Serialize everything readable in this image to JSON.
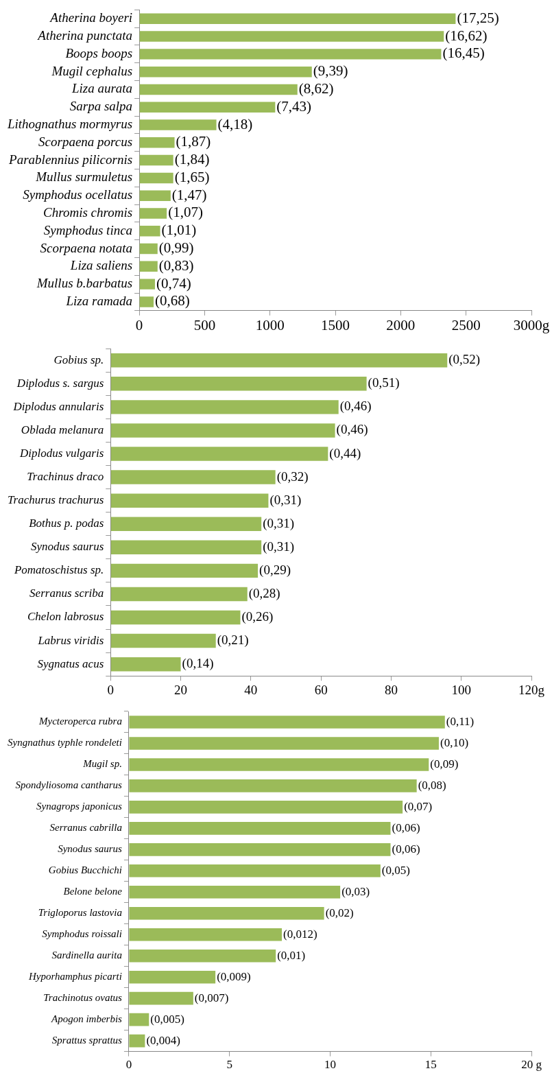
{
  "chart_data": [
    {
      "type": "bar",
      "orientation": "horizontal",
      "color": "#9bbb59",
      "categories": [
        "Atherina boyeri",
        "Atherina punctata",
        "Boops boops",
        "Mugil cephalus",
        "Liza aurata",
        "Sarpa salpa",
        "Lithognathus mormyrus",
        "Scorpaena porcus",
        "Parablennius pilicornis",
        "Mullus surmuletus",
        "Symphodus ocellatus",
        "Chromis chromis",
        "Symphodus tinca",
        "Scorpaena notata",
        "Liza saliens",
        "Mullus b.barbatus",
        "Liza ramada"
      ],
      "values": [
        2420,
        2330,
        2310,
        1320,
        1210,
        1040,
        590,
        270,
        260,
        260,
        240,
        210,
        160,
        140,
        140,
        120,
        110
      ],
      "annotations": [
        {
          "text": "(17,25)",
          "x": 2420
        },
        {
          "text": "(16,62)",
          "x": 2330
        },
        {
          "text": "(16,45)",
          "x": 2310
        },
        {
          "text": "(9,39)",
          "x": 1320
        },
        {
          "text": "(8,62)",
          "x": 1210
        },
        {
          "text": "(7,43)",
          "x": 1040
        },
        {
          "text": "(4,18)",
          "x": 590
        },
        {
          "text": "(1,87)",
          "x": 270
        },
        {
          "text": "(1,84)",
          "x": 260
        },
        {
          "text": "(1,65)",
          "x": 260
        },
        {
          "text": "(1,47)",
          "x": 240
        },
        {
          "text": "(1,07)",
          "x": 210
        },
        {
          "text": "(1,01)",
          "x": 160
        },
        {
          "text": "(0,99)",
          "x": 140
        },
        {
          "text": "(0,83)",
          "x": 140
        },
        {
          "text": "(0,74)",
          "x": 120
        },
        {
          "text": "(0,68)",
          "x": 110
        }
      ],
      "xlim": [
        0,
        3000
      ],
      "xticks": [
        0,
        500,
        1000,
        1500,
        2000,
        2500,
        {
          "value": 3000,
          "label": "3000g"
        }
      ]
    },
    {
      "type": "bar",
      "orientation": "horizontal",
      "color": "#9bbb59",
      "categories": [
        "Gobius sp.",
        "Diplodus s. sargus",
        "Diplodus annularis",
        "Oblada melanura",
        "Diplodus vulgaris",
        "Trachinus draco",
        "Trachurus trachurus",
        "Bothus p. podas",
        "Synodus saurus",
        "Pomatoschistus sp.",
        "Serranus scriba",
        "Chelon labrosus",
        "Labrus viridis",
        "Sygnatus acus"
      ],
      "values": [
        96,
        73,
        65,
        64,
        62,
        47,
        45,
        43,
        43,
        42,
        39,
        37,
        30,
        20
      ],
      "annotations": [
        {
          "text": "(0,52)",
          "x": 96
        },
        {
          "text": "(0,51)",
          "x": 73
        },
        {
          "text": "(0,46)",
          "x": 65
        },
        {
          "text": "(0,46)",
          "x": 64
        },
        {
          "text": "(0,44)",
          "x": 62
        },
        {
          "text": "(0,32)",
          "x": 47
        },
        {
          "text": "(0,31)",
          "x": 45
        },
        {
          "text": "(0,31)",
          "x": 43
        },
        {
          "text": "(0,31)",
          "x": 43
        },
        {
          "text": "(0,29)",
          "x": 42
        },
        {
          "text": "(0,28)",
          "x": 39
        },
        {
          "text": "(0,26)",
          "x": 37
        },
        {
          "text": "(0,21)",
          "x": 30
        },
        {
          "text": "(0,14)",
          "x": 20
        }
      ],
      "xlim": [
        0,
        120
      ],
      "xticks": [
        0,
        20,
        40,
        60,
        80,
        100,
        {
          "value": 120,
          "label": "120g"
        }
      ]
    },
    {
      "type": "bar",
      "orientation": "horizontal",
      "color": "#9bbb59",
      "categories": [
        "Mycteroperca rubra",
        "Syngnathus typhle rondeleti",
        "Mugil sp.",
        "Spondyliosoma cantharus",
        "Synagrops japonicus",
        "Serranus cabrilla",
        "Synodus saurus",
        "Gobius Bucchichi",
        "Belone belone",
        "Trigloporus lastovia",
        "Symphodus roissali",
        "Sardinella aurita",
        "Hyporhamphus picarti",
        "Trachinotus ovatus",
        "Apogon imberbis",
        "Sprattus sprattus"
      ],
      "values": [
        15.7,
        15.4,
        14.9,
        14.3,
        13.6,
        13.0,
        13.0,
        12.5,
        10.5,
        9.7,
        7.6,
        7.3,
        4.3,
        3.2,
        1.0,
        0.8
      ],
      "annotations": [
        {
          "text": "(0,11)",
          "x": 15.7
        },
        {
          "text": "(0,10)",
          "x": 15.4
        },
        {
          "text": "(0,09)",
          "x": 14.9
        },
        {
          "text": "(0,08)",
          "x": 14.3
        },
        {
          "text": "(0,07)",
          "x": 13.6
        },
        {
          "text": "(0,06)",
          "x": 13.0
        },
        {
          "text": "(0,06)",
          "x": 13.0
        },
        {
          "text": "(0,05)",
          "x": 12.5
        },
        {
          "text": "(0,03)",
          "x": 10.5
        },
        {
          "text": "(0,02)",
          "x": 9.7
        },
        {
          "text": "(0,012)",
          "x": 7.6
        },
        {
          "text": "(0,01)",
          "x": 7.3
        },
        {
          "text": "(0,009)",
          "x": 4.3
        },
        {
          "text": "(0,007)",
          "x": 3.2
        },
        {
          "text": "(0,005)",
          "x": 1.0
        },
        {
          "text": "(0,004)",
          "x": 0.8
        }
      ],
      "xlim": [
        0,
        20
      ],
      "xticks": [
        0,
        5,
        10,
        15,
        {
          "value": 20,
          "label": "20 g"
        }
      ]
    }
  ]
}
